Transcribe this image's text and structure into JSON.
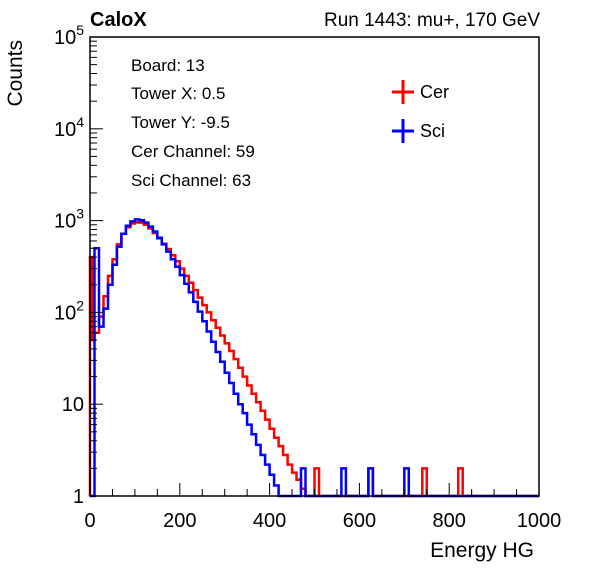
{
  "chart_data": {
    "type": "line",
    "title_left": "CaloX",
    "title_right": "Run 1443: mu+, 170 GeV",
    "xlabel": "Energy HG",
    "ylabel": "Counts",
    "xlim": [
      0,
      1000
    ],
    "ylim": [
      1,
      100000
    ],
    "y_scale": "log",
    "x_ticks": [
      "0",
      "200",
      "400",
      "600",
      "800",
      "1000"
    ],
    "y_ticks": [
      {
        "value": 1,
        "label": "1"
      },
      {
        "value": 10,
        "label": "10"
      },
      {
        "value": 100,
        "label": "10^2"
      },
      {
        "value": 1000,
        "label": "10^3"
      },
      {
        "value": 10000,
        "label": "10^4"
      },
      {
        "value": 100000,
        "label": "10^5"
      }
    ],
    "grid": false,
    "legend_position": "top-right",
    "info_box": {
      "board": "Board: 13",
      "tower_x": "Tower X: 0.5",
      "tower_y": "Tower Y: -9.5",
      "cer_channel": "Cer Channel: 59",
      "sci_channel": "Sci Channel: 63"
    },
    "series": [
      {
        "name": "Cer",
        "color": "#ff0000",
        "x": [
          0,
          5,
          10,
          20,
          30,
          40,
          50,
          60,
          70,
          80,
          90,
          100,
          110,
          120,
          130,
          140,
          150,
          160,
          170,
          180,
          190,
          200,
          210,
          220,
          230,
          240,
          250,
          260,
          270,
          280,
          290,
          300,
          310,
          320,
          330,
          340,
          350,
          360,
          370,
          380,
          390,
          400,
          410,
          420,
          430,
          440,
          450,
          460,
          470,
          480,
          490,
          500,
          510,
          520,
          530,
          540,
          550,
          560,
          570,
          580,
          590,
          600,
          610,
          620,
          630,
          640,
          650,
          660,
          670,
          680,
          690,
          700,
          710,
          720,
          730,
          740,
          750,
          760,
          770,
          780,
          790,
          800,
          810,
          820,
          830,
          840,
          850,
          860,
          870,
          880,
          890,
          900,
          910,
          920,
          930,
          940,
          950,
          960,
          970,
          980,
          990
        ],
        "y": [
          400,
          50,
          60,
          90,
          150,
          250,
          380,
          550,
          720,
          850,
          930,
          960,
          950,
          900,
          820,
          730,
          640,
          560,
          490,
          420,
          360,
          300,
          250,
          210,
          175,
          145,
          120,
          100,
          82,
          68,
          56,
          46,
          38,
          31,
          25,
          20,
          16,
          13,
          10.5,
          8.5,
          6.8,
          5.4,
          4.3,
          3.5,
          2.8,
          2.2,
          1.8,
          1.5,
          1.2,
          1,
          0,
          2,
          0,
          0,
          0,
          0,
          0,
          0,
          0,
          0,
          0,
          0,
          0,
          2,
          0,
          0,
          0,
          0,
          0,
          0,
          0,
          0,
          0,
          0,
          0,
          2,
          0,
          0,
          0,
          0,
          0,
          0,
          0,
          2,
          0,
          0,
          0,
          0,
          0,
          0,
          0,
          0,
          0,
          0,
          0,
          0,
          0,
          0,
          0,
          0,
          0
        ]
      },
      {
        "name": "Sci",
        "color": "#0000ff",
        "x": [
          0,
          5,
          10,
          20,
          30,
          40,
          50,
          60,
          70,
          80,
          90,
          100,
          110,
          120,
          130,
          140,
          150,
          160,
          170,
          180,
          190,
          200,
          210,
          220,
          230,
          240,
          250,
          260,
          270,
          280,
          290,
          300,
          310,
          320,
          330,
          340,
          350,
          360,
          370,
          380,
          390,
          400,
          410,
          420,
          430,
          440,
          450,
          460,
          470,
          480,
          490,
          500,
          510,
          520,
          530,
          540,
          550,
          560,
          570,
          580,
          590,
          600,
          610,
          620,
          630,
          640,
          650,
          660,
          670,
          680,
          690,
          700,
          710,
          720,
          730,
          740,
          750,
          760,
          770,
          780,
          790,
          800,
          810,
          820,
          830,
          840,
          850,
          860,
          870,
          880,
          890,
          900,
          910,
          920,
          930,
          940,
          950,
          960,
          970,
          980,
          990
        ],
        "y": [
          0,
          0,
          500,
          70,
          110,
          200,
          330,
          520,
          720,
          880,
          980,
          1030,
          1010,
          950,
          860,
          760,
          650,
          550,
          460,
          380,
          315,
          255,
          205,
          165,
          130,
          102,
          80,
          62,
          48,
          37,
          29,
          22,
          17,
          13,
          10,
          8,
          6,
          4.7,
          3.6,
          2.8,
          2.2,
          1.7,
          1.3,
          1,
          0,
          0,
          0,
          0,
          2,
          0,
          0,
          0,
          0,
          0,
          0,
          0,
          0,
          2,
          0,
          0,
          0,
          0,
          0,
          2,
          0,
          0,
          0,
          0,
          0,
          0,
          0,
          2,
          0,
          0,
          0,
          0,
          0,
          0,
          0,
          0,
          0,
          0,
          0,
          0,
          0,
          0,
          0,
          0,
          0,
          0,
          0,
          0,
          0,
          0,
          0,
          0,
          0,
          0,
          0,
          0,
          0
        ]
      }
    ]
  }
}
